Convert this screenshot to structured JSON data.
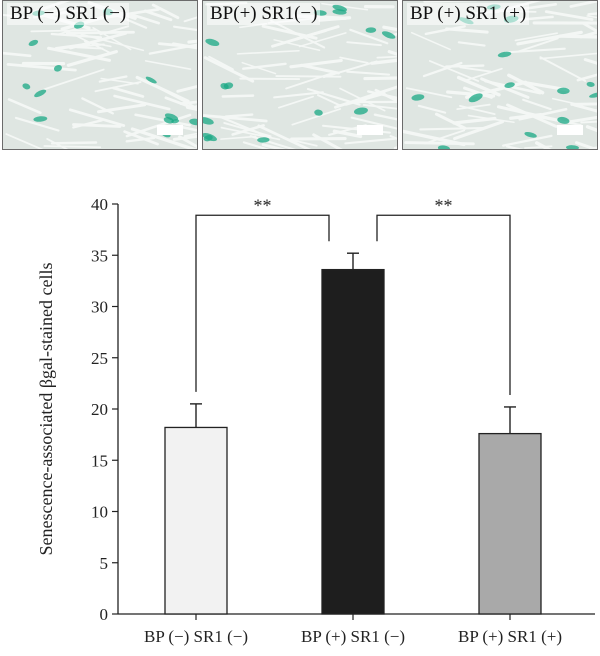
{
  "panels": [
    {
      "label": "BP (−) SR1 (−)"
    },
    {
      "label": "BP(+) SR1(−)"
    },
    {
      "label": "BP (+) SR1 (+)"
    }
  ],
  "colors": {
    "micro_bg": "#dfe6e2",
    "fibroblast": "#f4f7f5",
    "stain": "#1aa884"
  },
  "chart_data": {
    "type": "bar",
    "categories": [
      "BP (−) SR1 (−)",
      "BP (+) SR1 (−)",
      "BP (+) SR1 (+)"
    ],
    "values": [
      18.2,
      33.6,
      17.6
    ],
    "error": [
      2.3,
      1.6,
      2.6
    ],
    "bar_colors": [
      "#f2f2f2",
      "#1e1e1e",
      "#a9a9a9"
    ],
    "ylabel": "Senescence-associated βgal-stained cells",
    "ylim": [
      0,
      40
    ],
    "yticks": [
      0,
      5,
      10,
      15,
      20,
      25,
      30,
      35,
      40
    ],
    "grid": false,
    "significance": [
      {
        "from": 0,
        "to": 1,
        "label": "**"
      },
      {
        "from": 1,
        "to": 2,
        "label": "**"
      }
    ]
  }
}
